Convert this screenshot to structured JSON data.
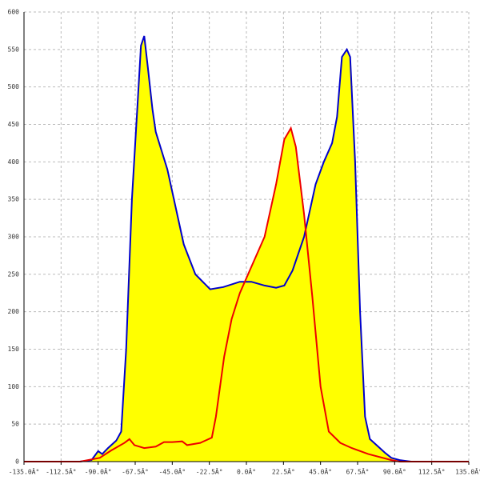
{
  "chart_data": {
    "type": "area",
    "xlim": [
      -135,
      135
    ],
    "ylim": [
      0,
      600
    ],
    "xticks": [
      {
        "value": -135,
        "label": "-135.0Â°"
      },
      {
        "value": -112.5,
        "label": "-112.5Â°"
      },
      {
        "value": -90,
        "label": "-90.0Â°"
      },
      {
        "value": -67.5,
        "label": "-67.5Â°"
      },
      {
        "value": -45,
        "label": "-45.0Â°"
      },
      {
        "value": -22.5,
        "label": "-22.5Â°"
      },
      {
        "value": 0,
        "label": "0.0Â°"
      },
      {
        "value": 22.5,
        "label": "22.5Â°"
      },
      {
        "value": 45,
        "label": "45.0Â°"
      },
      {
        "value": 67.5,
        "label": "67.5Â°"
      },
      {
        "value": 90,
        "label": "90.0Â°"
      },
      {
        "value": 112.5,
        "label": "112.5Â°"
      },
      {
        "value": 135,
        "label": "135.0Â°"
      }
    ],
    "yticks": [
      0,
      50,
      100,
      150,
      200,
      250,
      300,
      350,
      400,
      450,
      500,
      550,
      600
    ],
    "grid": true,
    "series": [
      {
        "color": "#0000cc",
        "fill": "#ffff00",
        "x": [
          -135,
          -101,
          -94,
          -90,
          -87.5,
          -84,
          -79,
          -76,
          -73,
          -69.5,
          -66,
          -64,
          -62,
          -60,
          -57,
          -55,
          -48,
          -38,
          -31,
          -22,
          -14,
          -4,
          3,
          11,
          18,
          23,
          28,
          35,
          42,
          47,
          52,
          55,
          58,
          61,
          63,
          66,
          69,
          72,
          75,
          79,
          84,
          88,
          93,
          100,
          135
        ],
        "values": [
          0,
          0,
          2,
          14,
          10,
          18,
          28,
          40,
          150,
          350,
          480,
          555,
          568,
          530,
          470,
          440,
          390,
          290,
          250,
          230,
          233,
          240,
          240,
          235,
          232,
          235,
          255,
          300,
          370,
          400,
          425,
          460,
          540,
          550,
          540,
          400,
          200,
          60,
          30,
          22,
          12,
          5,
          2,
          0,
          0
        ]
      },
      {
        "color": "#ee0000",
        "fill": "#ffff00",
        "x": [
          -135,
          -101,
          -89,
          -82,
          -74,
          -71,
          -68,
          -62,
          -55,
          -50,
          -45,
          -39,
          -36,
          -28,
          -21,
          -18.5,
          -13.5,
          -9,
          -4,
          3,
          11,
          18,
          23,
          27,
          30,
          35,
          40,
          45,
          50,
          57,
          64,
          74,
          88,
          93,
          135
        ],
        "values": [
          0,
          0,
          5,
          15,
          25,
          30,
          22,
          18,
          20,
          26,
          26,
          27,
          22,
          25,
          32,
          60,
          140,
          190,
          225,
          260,
          300,
          370,
          430,
          445,
          420,
          330,
          220,
          100,
          40,
          25,
          18,
          10,
          2,
          0,
          0
        ]
      }
    ]
  }
}
